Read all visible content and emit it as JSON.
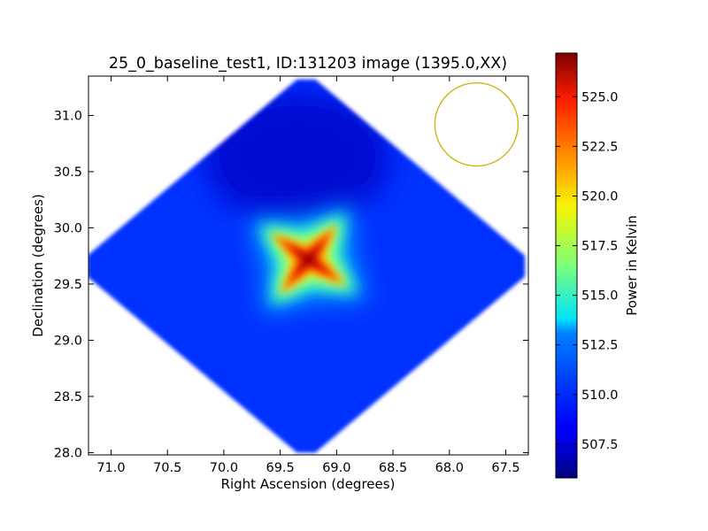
{
  "chart_data": {
    "type": "heatmap",
    "title": "25_0_baseline_test1, ID:131203 image (1395.0,XX)",
    "xlabel": "Right Ascension (degrees)",
    "ylabel": "Declination (degrees)",
    "colorbar_label": "Power in Kelvin",
    "xlim": [
      71.2,
      67.3
    ],
    "ylim": [
      27.98,
      31.35
    ],
    "x_ticks": [
      71.0,
      70.5,
      70.0,
      69.5,
      69.0,
      68.5,
      68.0,
      67.5
    ],
    "x_tick_labels": [
      "71.0",
      "70.5",
      "70.0",
      "69.5",
      "69.0",
      "68.5",
      "68.0",
      "67.5"
    ],
    "y_ticks": [
      28.0,
      28.5,
      29.0,
      29.5,
      30.0,
      30.5,
      31.0
    ],
    "y_tick_labels": [
      "28.0",
      "28.5",
      "29.0",
      "29.5",
      "30.0",
      "30.5",
      "31.0"
    ],
    "colorbar_range": [
      505.8,
      527.2
    ],
    "colorbar_ticks": [
      507.5,
      510.0,
      512.5,
      515.0,
      517.5,
      520.0,
      522.5,
      525.0
    ],
    "colorbar_tick_labels": [
      "507.5",
      "510.0",
      "512.5",
      "515.0",
      "517.5",
      "520.0",
      "522.5",
      "525.0"
    ],
    "colormap": "jet",
    "footprint": {
      "shape": "diamond",
      "center": [
        69.27,
        29.66
      ],
      "half_width_ra": 1.94,
      "half_height_dec": 1.66
    },
    "background_level": 509.5,
    "hotspot": {
      "center": [
        69.25,
        29.72
      ],
      "peak": 527.0,
      "shape": "four-pointed star"
    },
    "beam_circle": {
      "center": [
        67.76,
        30.92
      ],
      "radius_dec": 0.37,
      "color": "#c8b400"
    },
    "grid": false
  }
}
